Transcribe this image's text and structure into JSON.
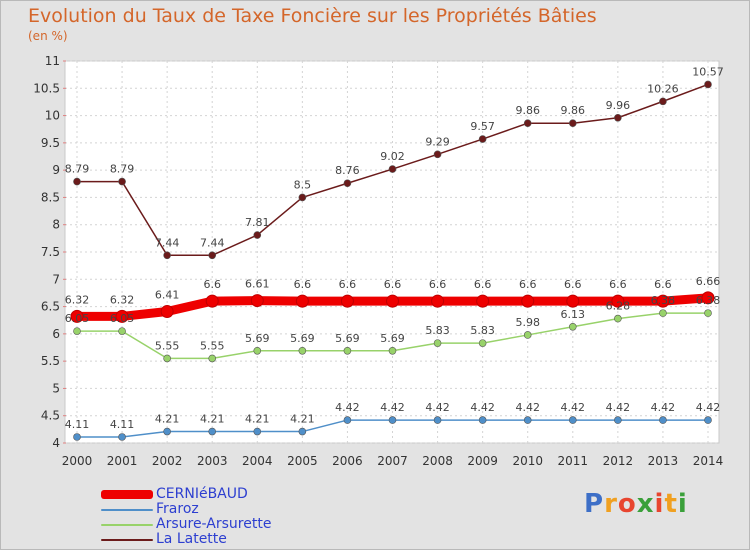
{
  "chart_data": {
    "type": "line",
    "title": "Evolution du Taux de Taxe Foncière sur les Propriétés Bâties",
    "unit": "(en %)",
    "xlabel": "",
    "ylabel": "",
    "ylim": [
      4,
      11
    ],
    "y_ticks": [
      "4",
      "4.5",
      "5",
      "5.5",
      "6",
      "6.5",
      "7",
      "7.5",
      "8",
      "8.5",
      "9",
      "9.5",
      "10",
      "10.5",
      "11"
    ],
    "grid": true,
    "legend_position": "bottom-left",
    "x": [
      "2000",
      "2001",
      "2002",
      "2003",
      "2004",
      "2005",
      "2006",
      "2007",
      "2008",
      "2009",
      "2010",
      "2011",
      "2012",
      "2013",
      "2014"
    ],
    "series": [
      {
        "name": "CERNIéBAUD",
        "color": "#ee0000",
        "values": [
          6.32,
          6.32,
          6.41,
          6.6,
          6.61,
          6.6,
          6.6,
          6.6,
          6.6,
          6.6,
          6.6,
          6.6,
          6.6,
          6.6,
          6.66
        ],
        "labels": [
          "6.32",
          "6.32",
          "6.41",
          "6.6",
          "6.61",
          "6.6",
          "6.6",
          "6.6",
          "6.6",
          "6.6",
          "6.6",
          "6.6",
          "6.6",
          "6.6",
          "6.66"
        ]
      },
      {
        "name": "Fraroz",
        "color": "#4f8fc9",
        "values": [
          4.11,
          4.11,
          4.21,
          4.21,
          4.21,
          4.21,
          4.42,
          4.42,
          4.42,
          4.42,
          4.42,
          4.42,
          4.42,
          4.42,
          4.42
        ],
        "labels": [
          "4.11",
          "4.11",
          "4.21",
          "4.21",
          "4.21",
          "4.21",
          "4.42",
          "4.42",
          "4.42",
          "4.42",
          "4.42",
          "4.42",
          "4.42",
          "4.42",
          "4.42"
        ]
      },
      {
        "name": "Arsure-Arsurette",
        "color": "#98d26a",
        "values": [
          6.05,
          6.05,
          5.55,
          5.55,
          5.69,
          5.69,
          5.69,
          5.69,
          5.83,
          5.83,
          5.98,
          6.13,
          6.28,
          6.38,
          6.38
        ],
        "labels": [
          "6.05",
          "6.05",
          "5.55",
          "5.55",
          "5.69",
          "5.69",
          "5.69",
          "5.69",
          "5.83",
          "5.83",
          "5.98",
          "6.13",
          "6.28",
          "6.38",
          "6.38"
        ]
      },
      {
        "name": "La Latette",
        "color": "#6b1b1b",
        "values": [
          8.79,
          8.79,
          7.44,
          7.44,
          7.81,
          8.5,
          8.76,
          9.02,
          9.29,
          9.57,
          9.86,
          9.86,
          9.96,
          10.26,
          10.57
        ],
        "labels": [
          "8.79",
          "8.79",
          "7.44",
          "7.44",
          "7.81",
          "8.5",
          "8.76",
          "9.02",
          "9.29",
          "9.57",
          "9.86",
          "9.86",
          "9.96",
          "10.26",
          "10.57"
        ]
      }
    ]
  },
  "logo": {
    "text": "Proxiti",
    "letter_colors": [
      "#3d6fc7",
      "#f0a020",
      "#e8452f",
      "#3aa03a",
      "#e8452f",
      "#f0a020",
      "#3aa03a"
    ]
  }
}
